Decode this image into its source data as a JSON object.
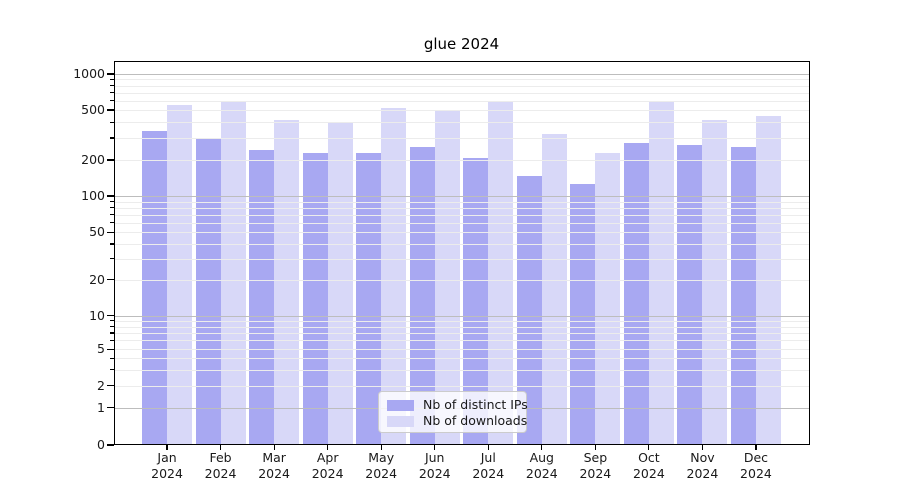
{
  "title": "glue 2024",
  "colors": {
    "ips": "#a8a8f2",
    "downloads": "#d8d8f8",
    "grid_major": "#bdbdbd",
    "grid_minor": "#ececec",
    "spine": "#000000",
    "background": "#ffffff",
    "text": "#1a1a1a"
  },
  "legend": {
    "items": [
      {
        "label": "Nb of distinct IPs",
        "color": "#a8a8f2"
      },
      {
        "label": "Nb of downloads",
        "color": "#d8d8f8"
      }
    ]
  },
  "chart_data": {
    "type": "bar",
    "title": "glue 2024",
    "categories": [
      "Jan 2024",
      "Feb 2024",
      "Mar 2024",
      "Apr 2024",
      "May 2024",
      "Jun 2024",
      "Jul 2024",
      "Aug 2024",
      "Sep 2024",
      "Oct 2024",
      "Nov 2024",
      "Dec 2024"
    ],
    "series": [
      {
        "name": "Nb of distinct IPs",
        "key": "ips",
        "color": "#a8a8f2",
        "values": [
          340,
          300,
          240,
          228,
          228,
          253,
          208,
          148,
          127,
          272,
          262,
          252
        ]
      },
      {
        "name": "Nb of downloads",
        "key": "downloads",
        "color": "#d8d8f8",
        "values": [
          550,
          600,
          415,
          400,
          520,
          497,
          600,
          320,
          228,
          580,
          420,
          452
        ]
      }
    ],
    "xlabel": "",
    "ylabel": "",
    "yscale": "log-with-zero",
    "yticks": [
      0,
      1,
      2,
      5,
      10,
      20,
      50,
      100,
      200,
      500,
      1000
    ],
    "ylim": [
      0,
      1100
    ],
    "grid": true,
    "legend_position": "lower center"
  }
}
